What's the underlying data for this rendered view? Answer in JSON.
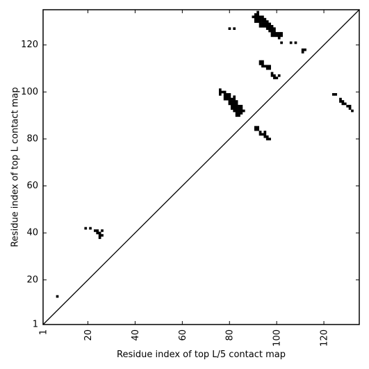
{
  "chart_data": {
    "type": "scatter",
    "xlabel": "Residue index of top L/5 contact map",
    "ylabel": "Residue index of top L contact map",
    "xlim": [
      1,
      135
    ],
    "ylim": [
      1,
      135
    ],
    "xticks": [
      {
        "value": 1,
        "label": "1"
      },
      {
        "value": 20,
        "label": "20"
      },
      {
        "value": 40,
        "label": "40"
      },
      {
        "value": 60,
        "label": "60"
      },
      {
        "value": 80,
        "label": "80"
      },
      {
        "value": 100,
        "label": "100"
      },
      {
        "value": 120,
        "label": "120"
      }
    ],
    "yticks": [
      {
        "value": 1,
        "label": "1"
      },
      {
        "value": 20,
        "label": "20"
      },
      {
        "value": 40,
        "label": "40"
      },
      {
        "value": 60,
        "label": "60"
      },
      {
        "value": 80,
        "label": "80"
      },
      {
        "value": 100,
        "label": "100"
      },
      {
        "value": 120,
        "label": "120"
      }
    ],
    "diagonal": true,
    "grid": false,
    "marker_color": "#000000",
    "points": [
      [
        7,
        13
      ],
      [
        19,
        42
      ],
      [
        21,
        42
      ],
      [
        23,
        41
      ],
      [
        24,
        41
      ],
      [
        24,
        40
      ],
      [
        25,
        40
      ],
      [
        25,
        39
      ],
      [
        25,
        38
      ],
      [
        26,
        39
      ],
      [
        26,
        41
      ],
      [
        80,
        127
      ],
      [
        82,
        127
      ],
      [
        90,
        132
      ],
      [
        91,
        133
      ],
      [
        91,
        132
      ],
      [
        91,
        131
      ],
      [
        91,
        130
      ],
      [
        92,
        134
      ],
      [
        92,
        133
      ],
      [
        92,
        132
      ],
      [
        92,
        131
      ],
      [
        92,
        130
      ],
      [
        93,
        132
      ],
      [
        93,
        131
      ],
      [
        93,
        130
      ],
      [
        93,
        129
      ],
      [
        93,
        128
      ],
      [
        94,
        132
      ],
      [
        94,
        131
      ],
      [
        94,
        130
      ],
      [
        94,
        129
      ],
      [
        94,
        128
      ],
      [
        95,
        131
      ],
      [
        95,
        130
      ],
      [
        95,
        129
      ],
      [
        95,
        128
      ],
      [
        96,
        130
      ],
      [
        96,
        129
      ],
      [
        96,
        128
      ],
      [
        96,
        127
      ],
      [
        97,
        129
      ],
      [
        97,
        128
      ],
      [
        97,
        127
      ],
      [
        97,
        126
      ],
      [
        98,
        128
      ],
      [
        98,
        127
      ],
      [
        98,
        126
      ],
      [
        98,
        125
      ],
      [
        98,
        124
      ],
      [
        99,
        127
      ],
      [
        99,
        126
      ],
      [
        99,
        125
      ],
      [
        99,
        124
      ],
      [
        100,
        125
      ],
      [
        100,
        124
      ],
      [
        101,
        125
      ],
      [
        101,
        124
      ],
      [
        101,
        123
      ],
      [
        102,
        125
      ],
      [
        102,
        124
      ],
      [
        102,
        121
      ],
      [
        106,
        121
      ],
      [
        108,
        121
      ],
      [
        111,
        118
      ],
      [
        111,
        117
      ],
      [
        112,
        118
      ],
      [
        93,
        113
      ],
      [
        93,
        112
      ],
      [
        94,
        113
      ],
      [
        94,
        112
      ],
      [
        94,
        111
      ],
      [
        95,
        111
      ],
      [
        96,
        111
      ],
      [
        96,
        110
      ],
      [
        97,
        111
      ],
      [
        97,
        110
      ],
      [
        98,
        108
      ],
      [
        98,
        107
      ],
      [
        99,
        107
      ],
      [
        99,
        106
      ],
      [
        100,
        106
      ],
      [
        101,
        107
      ],
      [
        76,
        101
      ],
      [
        76,
        100
      ],
      [
        76,
        99
      ],
      [
        77,
        100
      ],
      [
        78,
        100
      ],
      [
        78,
        99
      ],
      [
        78,
        98
      ],
      [
        78,
        97
      ],
      [
        79,
        99
      ],
      [
        79,
        98
      ],
      [
        79,
        97
      ],
      [
        80,
        99
      ],
      [
        80,
        98
      ],
      [
        80,
        97
      ],
      [
        80,
        96
      ],
      [
        80,
        95
      ],
      [
        81,
        97
      ],
      [
        81,
        96
      ],
      [
        81,
        95
      ],
      [
        81,
        94
      ],
      [
        81,
        93
      ],
      [
        82,
        98
      ],
      [
        82,
        97
      ],
      [
        82,
        96
      ],
      [
        82,
        95
      ],
      [
        82,
        94
      ],
      [
        82,
        93
      ],
      [
        82,
        92
      ],
      [
        83,
        96
      ],
      [
        83,
        95
      ],
      [
        83,
        94
      ],
      [
        83,
        93
      ],
      [
        83,
        92
      ],
      [
        83,
        91
      ],
      [
        83,
        90
      ],
      [
        84,
        94
      ],
      [
        84,
        93
      ],
      [
        84,
        92
      ],
      [
        84,
        91
      ],
      [
        84,
        90
      ],
      [
        85,
        94
      ],
      [
        85,
        93
      ],
      [
        85,
        92
      ],
      [
        85,
        91
      ],
      [
        86,
        92
      ],
      [
        91,
        85
      ],
      [
        91,
        84
      ],
      [
        92,
        85
      ],
      [
        92,
        84
      ],
      [
        93,
        83
      ],
      [
        93,
        82
      ],
      [
        94,
        82
      ],
      [
        95,
        83
      ],
      [
        95,
        82
      ],
      [
        95,
        81
      ],
      [
        96,
        81
      ],
      [
        96,
        80
      ],
      [
        97,
        80
      ],
      [
        124,
        99
      ],
      [
        125,
        99
      ],
      [
        127,
        97
      ],
      [
        127,
        96
      ],
      [
        128,
        96
      ],
      [
        128,
        95
      ],
      [
        129,
        95
      ],
      [
        130,
        94
      ],
      [
        131,
        94
      ],
      [
        131,
        93
      ],
      [
        132,
        92
      ]
    ]
  }
}
